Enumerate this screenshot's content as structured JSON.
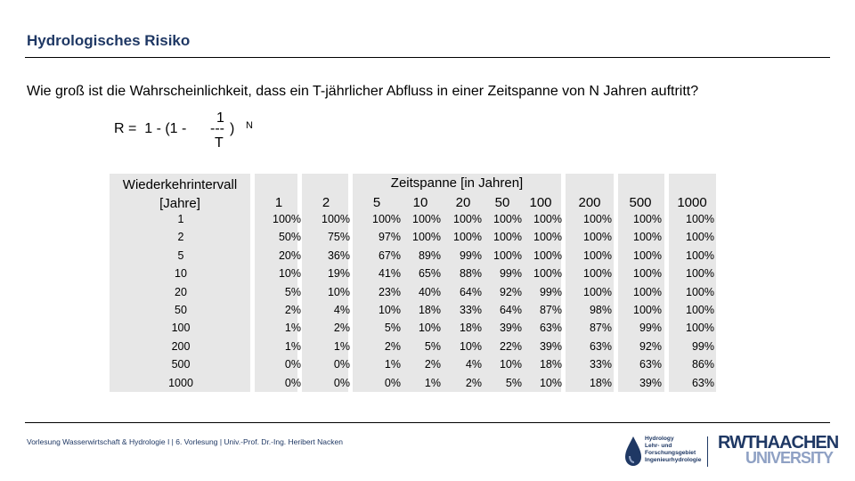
{
  "header": {
    "title": "Hydrologisches Risiko"
  },
  "question": "Wie groß ist die Wahrscheinlichkeit, dass ein T-jährlicher Abfluss in einer Zeitspanne von N Jahren auftritt?",
  "formula": {
    "main": "R =  1 - (1 -",
    "numerator": "1",
    "bar": "---",
    "close": ")",
    "denominator": "T",
    "exponent": "N"
  },
  "table": {
    "header_row": "Wiederkehrintervall",
    "header_row_unit": "[Jahre]",
    "header_span": "Zeitspanne [in Jahren]",
    "columns": [
      "1",
      "2",
      "5",
      "10",
      "20",
      "50",
      "100",
      "200",
      "500",
      "1000"
    ],
    "rows": [
      {
        "t": "1",
        "values": [
          "100%",
          "100%",
          "100%",
          "100%",
          "100%",
          "100%",
          "100%",
          "100%",
          "100%",
          "100%"
        ]
      },
      {
        "t": "2",
        "values": [
          "50%",
          "75%",
          "97%",
          "100%",
          "100%",
          "100%",
          "100%",
          "100%",
          "100%",
          "100%"
        ]
      },
      {
        "t": "5",
        "values": [
          "20%",
          "36%",
          "67%",
          "89%",
          "99%",
          "100%",
          "100%",
          "100%",
          "100%",
          "100%"
        ]
      },
      {
        "t": "10",
        "values": [
          "10%",
          "19%",
          "41%",
          "65%",
          "88%",
          "99%",
          "100%",
          "100%",
          "100%",
          "100%"
        ]
      },
      {
        "t": "20",
        "values": [
          "5%",
          "10%",
          "23%",
          "40%",
          "64%",
          "92%",
          "99%",
          "100%",
          "100%",
          "100%"
        ]
      },
      {
        "t": "50",
        "values": [
          "2%",
          "4%",
          "10%",
          "18%",
          "33%",
          "64%",
          "87%",
          "98%",
          "100%",
          "100%"
        ]
      },
      {
        "t": "100",
        "values": [
          "1%",
          "2%",
          "5%",
          "10%",
          "18%",
          "39%",
          "63%",
          "87%",
          "99%",
          "100%"
        ]
      },
      {
        "t": "200",
        "values": [
          "1%",
          "1%",
          "2%",
          "5%",
          "10%",
          "22%",
          "39%",
          "63%",
          "92%",
          "99%"
        ]
      },
      {
        "t": "500",
        "values": [
          "0%",
          "0%",
          "1%",
          "2%",
          "4%",
          "10%",
          "18%",
          "33%",
          "63%",
          "86%"
        ]
      },
      {
        "t": "1000",
        "values": [
          "0%",
          "0%",
          "0%",
          "1%",
          "2%",
          "5%",
          "10%",
          "18%",
          "39%",
          "63%"
        ]
      }
    ]
  },
  "footer": {
    "text": "Vorlesung Wasserwirtschaft & Hydrologie I | 6. Vorlesung | Univ.-Prof. Dr.-Ing. Heribert Nacken"
  },
  "logos": {
    "institute_lines": [
      "Hydrology",
      "Lehr- und",
      "Forschungsgebiet",
      "Ingenieurhydrologie"
    ],
    "rwth_line1": "RWTHAACHEN",
    "rwth_line2": "UNIVERSITY",
    "drop_color": "#1f3864",
    "drop_light": "#8fa1c4"
  }
}
